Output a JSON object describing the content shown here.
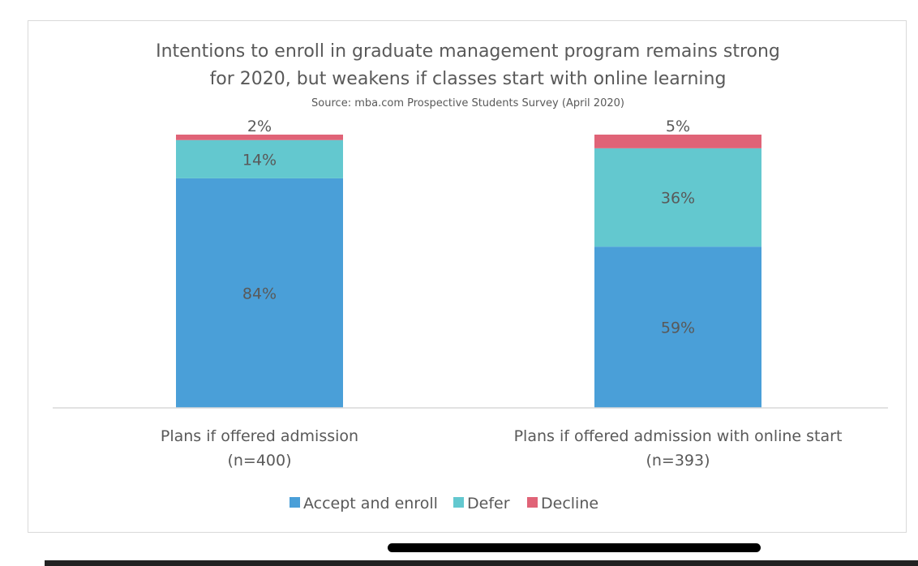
{
  "chart_data": {
    "type": "bar",
    "stacked": true,
    "title": [
      "Intentions to enroll in graduate management program remains strong",
      "for 2020, but weakens if classes start with online learning"
    ],
    "subtitle": "Source: mba.com Prospective Students Survey (April 2020)",
    "categories": [
      [
        "Plans if offered admission",
        "(n=400)"
      ],
      [
        "Plans if offered admission with online start",
        "(n=393)"
      ]
    ],
    "series": [
      {
        "name": "Accept and enroll",
        "values": [
          84,
          59
        ],
        "labels": [
          "84%",
          "59%"
        ],
        "color": "#4a9fd8"
      },
      {
        "name": "Defer",
        "values": [
          14,
          36
        ],
        "labels": [
          "14%",
          "36%"
        ],
        "color": "#63c8cf"
      },
      {
        "name": "Decline",
        "values": [
          2,
          5
        ],
        "labels": [
          "2%",
          "5%"
        ],
        "color": "#e06377"
      }
    ],
    "ylim": [
      0,
      100
    ],
    "grid": false,
    "legend": "bottom"
  }
}
